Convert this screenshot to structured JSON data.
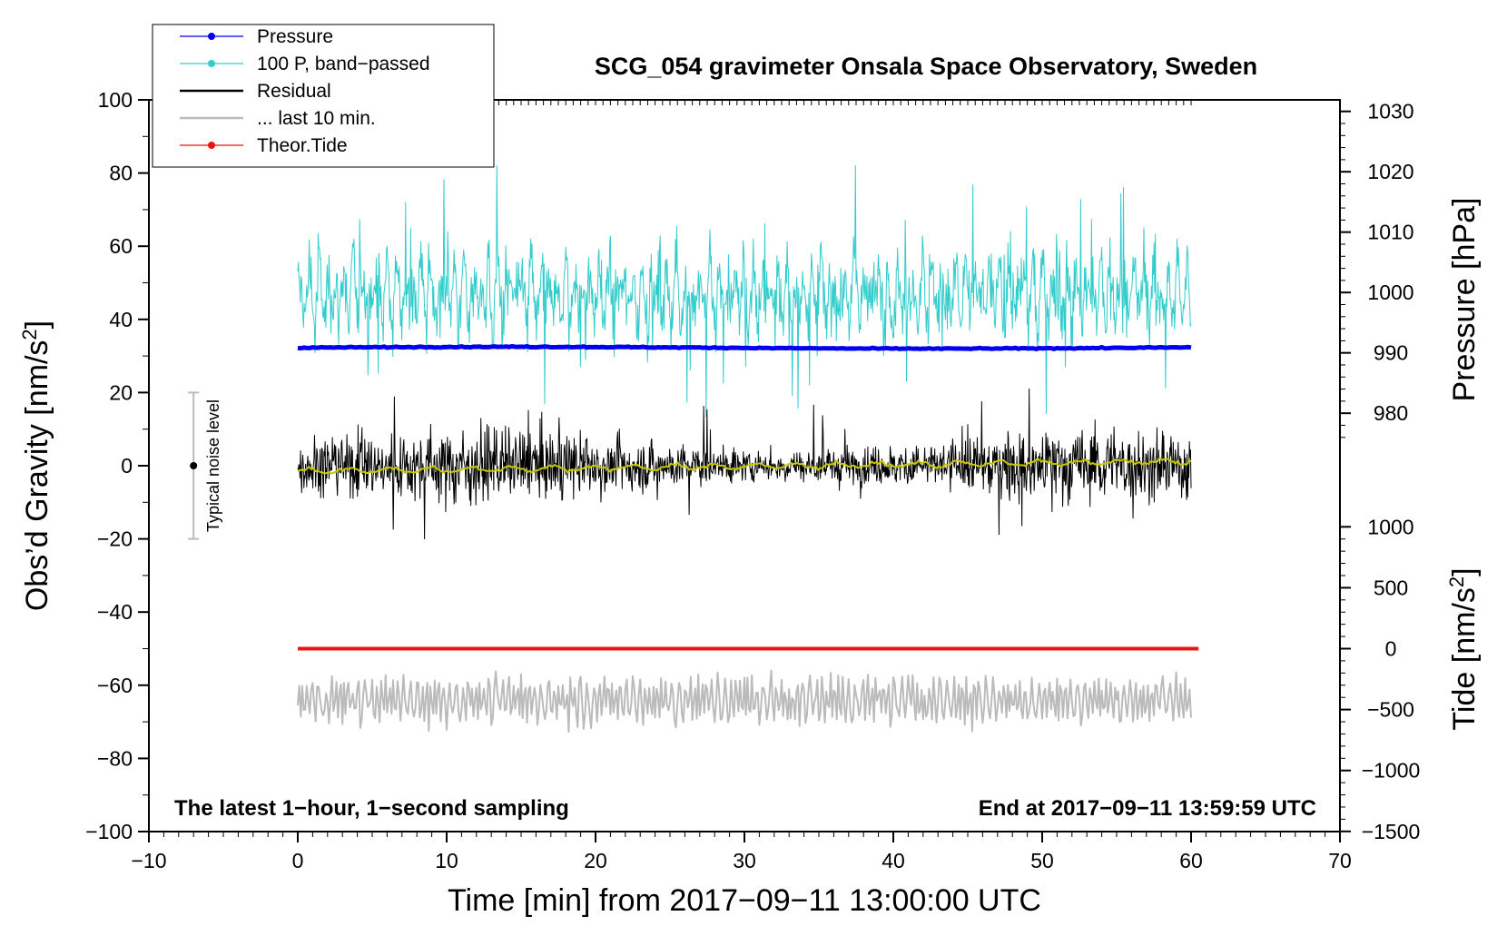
{
  "chart_data": {
    "type": "line",
    "title": "SCG_054 gravimeter Onsala Space Observatory, Sweden",
    "xlabel": "Time [min] from 2017−09−11 13:00:00 UTC",
    "ylabel": "Obs’d Gravity [nm/s",
    "ylabel_sup": "2",
    "ylabel_close": "]",
    "xlim": [
      -10,
      70
    ],
    "ylim": [
      -100,
      100
    ],
    "xticks": [
      -10,
      0,
      10,
      20,
      30,
      40,
      50,
      60,
      70
    ],
    "xtick_labels": [
      "−10",
      "0",
      "10",
      "20",
      "30",
      "40",
      "50",
      "60",
      "70"
    ],
    "yticks": [
      -100,
      -80,
      -60,
      -40,
      -20,
      0,
      20,
      40,
      60,
      80,
      100
    ],
    "ytick_labels": [
      "−100",
      "−80",
      "−60",
      "−40",
      "−20",
      "0",
      "20",
      "40",
      "60",
      "80",
      "100"
    ],
    "pressure_axis": {
      "label": "Pressure [hPa]",
      "ticks": [
        980,
        990,
        1000,
        1010,
        1020,
        1030
      ],
      "tick_labels": [
        "980",
        "990",
        "1000",
        "1010",
        "1020",
        "1030"
      ]
    },
    "tide_axis": {
      "label": "Tide [nm/s",
      "label_sup": "2",
      "label_close": "]",
      "ticks": [
        -1500,
        -1000,
        -500,
        0,
        500,
        1000
      ],
      "tick_labels": [
        "−1500",
        "−1000",
        "−500",
        "0",
        "500",
        "1000"
      ]
    },
    "series": [
      {
        "name": "Pressure",
        "color": "#0000ee",
        "gravity_level": 32.5,
        "pressure_hPa": 991
      },
      {
        "name": "100 P, band−passed",
        "color": "#33cccc",
        "center": 47,
        "typical_min": 25,
        "typical_max": 73
      },
      {
        "name": "Residual",
        "color": "#000000",
        "center": 0,
        "typical_min": -15,
        "typical_max": 15
      },
      {
        "name": "... last 10 min.",
        "color": "#bbbbbb",
        "center": -64,
        "typical_min": -74,
        "typical_max": -52
      },
      {
        "name": "Theor.Tide",
        "color": "#ee1111",
        "gravity_level": -50,
        "tide_nms2": 0
      },
      {
        "name": "smoothed residual",
        "color": "#c8c800",
        "start": -1.5,
        "end": 1.2
      }
    ],
    "series_x_range": [
      0,
      60
    ],
    "noise_bar": {
      "label": "Typical noise level",
      "x": -7,
      "center": 0,
      "half_range": 20
    },
    "annotations": {
      "left": "The latest 1−hour, 1−second sampling",
      "right": "End at 2017−09−11 13:59:59 UTC"
    },
    "legend_position": "top-left",
    "grid": false
  }
}
